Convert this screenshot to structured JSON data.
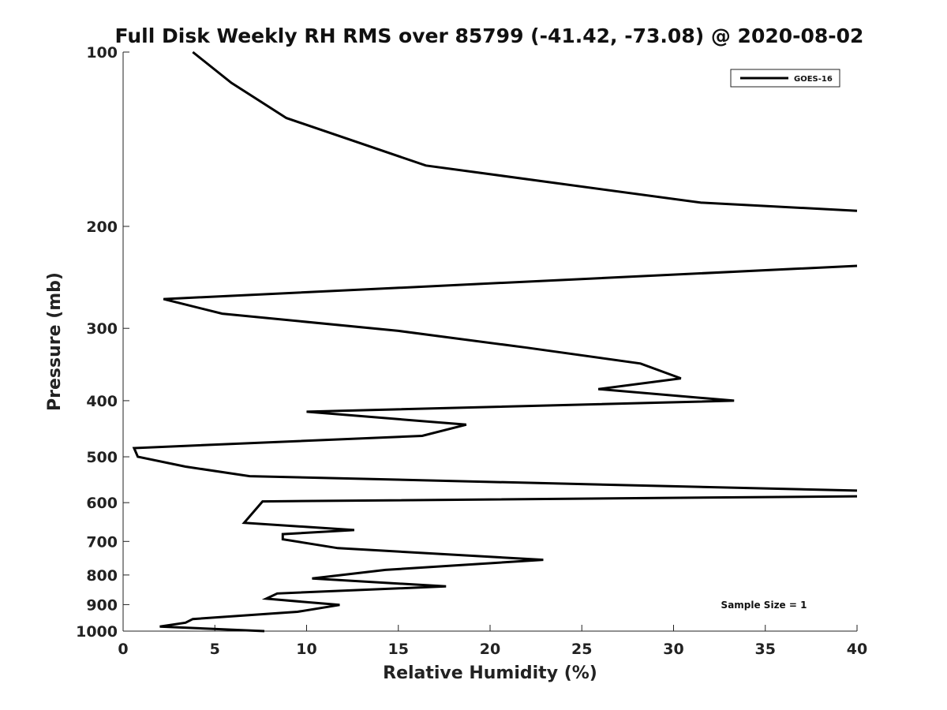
{
  "chart_data": {
    "type": "line",
    "title": "Full Disk Weekly RH RMS over 85799 (-41.42, -73.08) @ 2020-08-02",
    "xlabel": "Relative Humidity (%)",
    "ylabel": "Pressure (mb)",
    "xlim": [
      0,
      40
    ],
    "ylim": [
      100,
      1000
    ],
    "y_scale": "log",
    "y_reversed": true,
    "xticks": [
      0,
      5,
      10,
      15,
      20,
      25,
      30,
      35,
      40
    ],
    "yticks": [
      100,
      200,
      300,
      400,
      500,
      600,
      700,
      800,
      900,
      1000
    ],
    "grid": false,
    "legend": {
      "position": "top-right",
      "entries": [
        "GOES-16"
      ]
    },
    "annotation": "Sample Size = 1",
    "series": [
      {
        "name": "GOES-16",
        "color": "#000000",
        "x": [
          3.8,
          5.9,
          8.9,
          16.5,
          31.5,
          40.0,
          null,
          40.0,
          2.2,
          5.4,
          15.0,
          22.0,
          28.2,
          30.4,
          25.9,
          33.3,
          10.0,
          18.7,
          16.3,
          0.6,
          0.8,
          3.4,
          6.9,
          40.0,
          null,
          40.0,
          7.6,
          6.6,
          12.6,
          8.7,
          8.7,
          11.7,
          22.9,
          14.3,
          10.3,
          17.6,
          8.4,
          7.8,
          11.8,
          9.5,
          3.8,
          3.4,
          2.0,
          7.7
        ],
        "y": [
          100,
          113,
          130,
          157,
          182,
          188,
          null,
          234,
          267,
          283,
          303,
          324,
          345,
          366,
          382,
          400,
          418,
          440,
          460,
          483,
          500,
          520,
          540,
          572,
          null,
          585,
          597,
          650,
          669,
          680,
          694,
          719,
          753,
          784,
          811,
          837,
          861,
          879,
          901,
          926,
          953,
          967,
          982,
          1000
        ]
      }
    ]
  }
}
